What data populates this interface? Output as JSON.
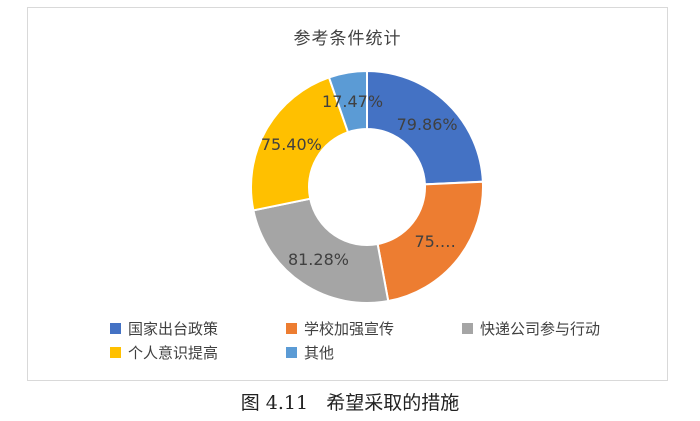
{
  "chart_data": {
    "type": "pie",
    "subtype": "donut",
    "title": "参考条件统计",
    "categories": [
      "国家出台政策",
      "学校加强宣传",
      "快递公司参与行动",
      "个人意识提高",
      "其他"
    ],
    "values": [
      79.86,
      75.0,
      81.28,
      75.4,
      17.47
    ],
    "data_labels": [
      "79.86%",
      "75.…",
      "81.28%",
      "75.40%",
      "17.47%"
    ],
    "colors": [
      "#4472C4",
      "#ED7D31",
      "#A5A5A5",
      "#FFC000",
      "#5B9BD5"
    ],
    "legend_position": "bottom"
  },
  "caption": {
    "figure_number": "图 4.11",
    "text": "希望采取的措施"
  }
}
